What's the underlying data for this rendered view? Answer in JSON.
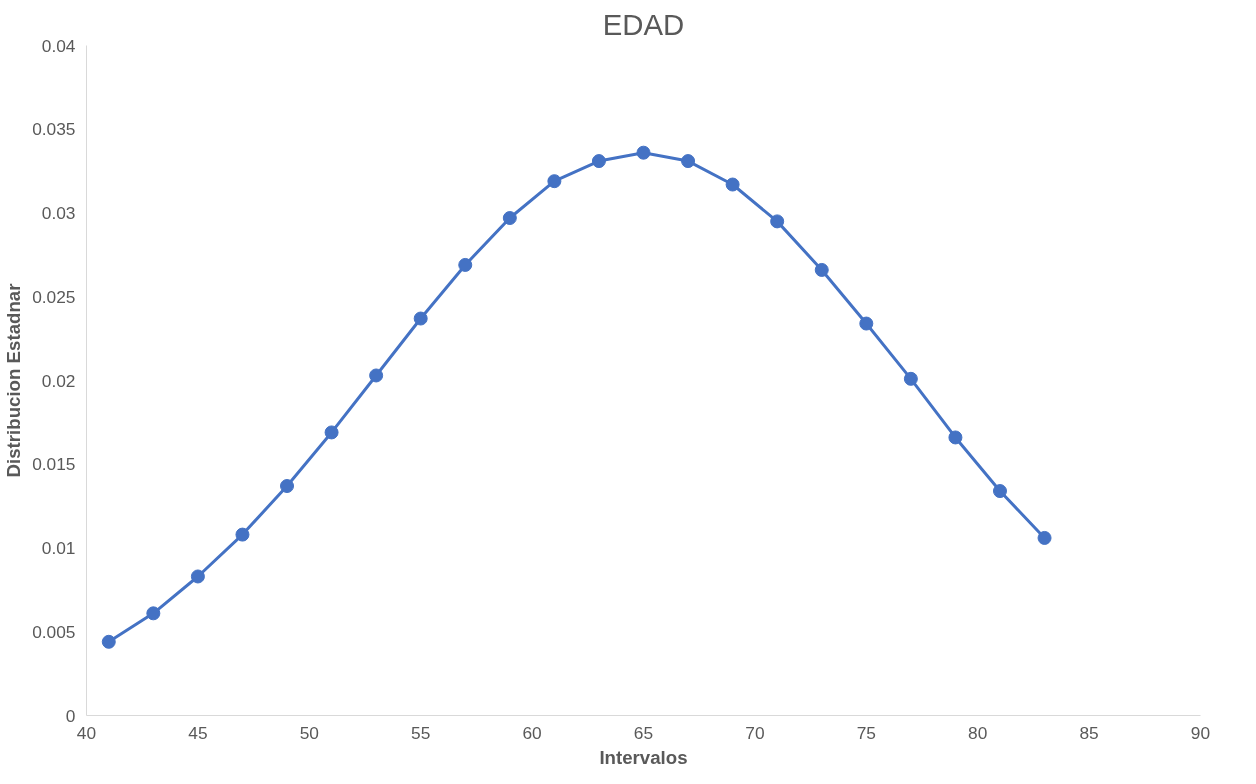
{
  "chart_data": {
    "type": "line",
    "title": "EDAD",
    "xlabel": "Intervalos",
    "ylabel": "Distribucion Estadnar",
    "x": [
      41,
      43,
      45,
      47,
      49,
      51,
      53,
      55,
      57,
      59,
      61,
      63,
      65,
      67,
      69,
      71,
      73,
      75,
      77,
      79,
      81,
      83
    ],
    "series": [
      {
        "color": "#4472c4",
        "values": [
          0.0044,
          0.0061,
          0.0083,
          0.0108,
          0.0137,
          0.0169,
          0.0203,
          0.0237,
          0.0269,
          0.0297,
          0.0319,
          0.0331,
          0.0336,
          0.0331,
          0.0317,
          0.0295,
          0.0266,
          0.0234,
          0.0201,
          0.0166,
          0.0134,
          0.0106
        ]
      }
    ],
    "xlim": [
      40,
      90
    ],
    "xticks": [
      40,
      45,
      50,
      55,
      60,
      65,
      70,
      75,
      80,
      85,
      90
    ],
    "ylim": [
      0,
      0.04
    ],
    "yticks": [
      0,
      0.005,
      0.01,
      0.015,
      0.02,
      0.025,
      0.03,
      0.035,
      0.04
    ],
    "grid": false,
    "marker": "circle",
    "line_style": "solid"
  }
}
